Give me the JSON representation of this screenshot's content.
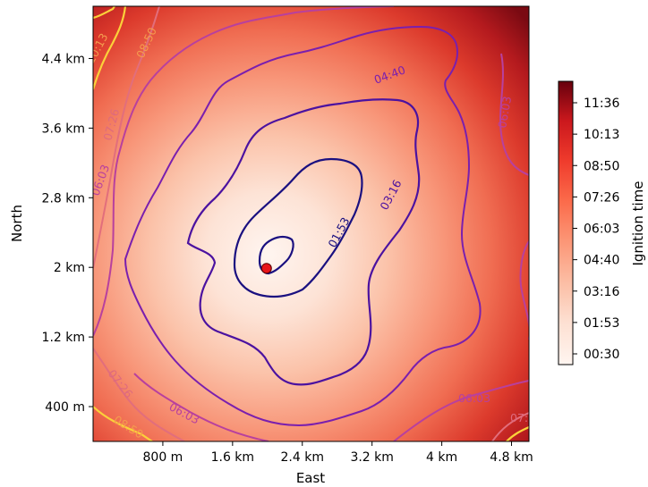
{
  "chart_data": {
    "type": "heatmap",
    "xlabel": "East",
    "ylabel": "North",
    "xlim_km": [
      0,
      5
    ],
    "ylim_km": [
      0,
      5
    ],
    "x_ticks": [
      {
        "value": 0.8,
        "label": "800 m"
      },
      {
        "value": 1.6,
        "label": "1.6 km"
      },
      {
        "value": 2.4,
        "label": "2.4 km"
      },
      {
        "value": 3.2,
        "label": "3.2 km"
      },
      {
        "value": 4.0,
        "label": "4 km"
      },
      {
        "value": 4.8,
        "label": "4.8 km"
      }
    ],
    "y_ticks": [
      {
        "value": 0.4,
        "label": "400 m"
      },
      {
        "value": 1.2,
        "label": "1.2 km"
      },
      {
        "value": 2.0,
        "label": "2 km"
      },
      {
        "value": 2.8,
        "label": "2.8 km"
      },
      {
        "value": 3.6,
        "label": "3.6 km"
      },
      {
        "value": 4.4,
        "label": "4.4 km"
      }
    ],
    "colorbar": {
      "label": "Ignition time",
      "colormap": "Reds",
      "ticks": [
        "00:30",
        "01:53",
        "03:16",
        "04:40",
        "06:03",
        "07:26",
        "08:50",
        "10:13",
        "11:36"
      ]
    },
    "ignition_point": {
      "x": 2.0,
      "y": 2.0,
      "color": "#e8141a"
    },
    "contour_labels": [
      "01:53",
      "03:16",
      "04:40",
      "06:03",
      "07:26",
      "08:50",
      "10:13"
    ],
    "contour_colors": {
      "01:53": "#1a1080",
      "03:16": "#4b12a0",
      "04:40": "#7a1fae",
      "06:03": "#b8409e",
      "07:26": "#de6a7e",
      "08:50": "#f49a4e",
      "10:13": "#fbd13a"
    },
    "grid": false
  }
}
